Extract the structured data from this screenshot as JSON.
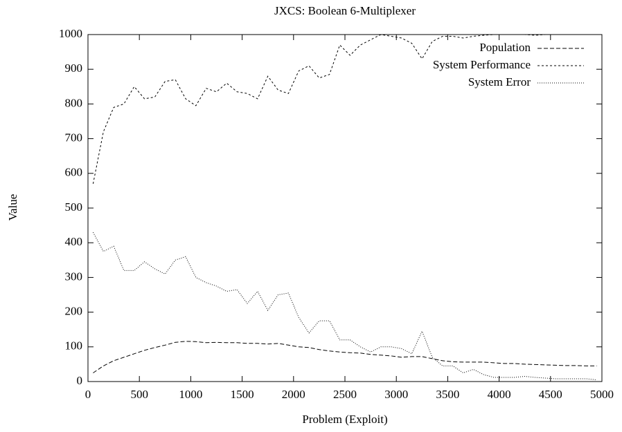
{
  "chart_data": {
    "type": "line",
    "title": "JXCS: Boolean 6-Multiplexer",
    "xlabel": "Problem (Exploit)",
    "ylabel": "Value",
    "x": [
      50,
      150,
      250,
      350,
      450,
      550,
      650,
      750,
      850,
      950,
      1050,
      1150,
      1250,
      1350,
      1450,
      1550,
      1650,
      1750,
      1850,
      1950,
      2050,
      2150,
      2250,
      2350,
      2450,
      2550,
      2650,
      2750,
      2850,
      2950,
      3050,
      3150,
      3250,
      3350,
      3450,
      3550,
      3650,
      3750,
      3850,
      3950,
      4050,
      4150,
      4250,
      4350,
      4450,
      4550,
      4650,
      4750,
      4850,
      4950
    ],
    "series": [
      {
        "name": "Population",
        "color": "#000000",
        "values": [
          25,
          45,
          60,
          70,
          80,
          90,
          98,
          105,
          113,
          116,
          115,
          112,
          113,
          112,
          112,
          110,
          110,
          108,
          110,
          105,
          100,
          98,
          92,
          88,
          85,
          83,
          82,
          78,
          76,
          74,
          70,
          72,
          72,
          66,
          60,
          57,
          56,
          56,
          56,
          54,
          52,
          52,
          50,
          49,
          48,
          47,
          46,
          46,
          45,
          45
        ]
      },
      {
        "name": "System Performance",
        "color": "#000000",
        "values": [
          570,
          720,
          790,
          800,
          850,
          815,
          820,
          865,
          870,
          815,
          795,
          845,
          835,
          860,
          835,
          830,
          815,
          880,
          840,
          830,
          895,
          910,
          875,
          885,
          970,
          940,
          970,
          985,
          1000,
          995,
          990,
          975,
          930,
          980,
          995,
          995,
          990,
          995,
          998,
          1000,
          1000,
          1000,
          1000,
          998,
          1000,
          1000,
          1000,
          1000,
          1000,
          1000
        ]
      },
      {
        "name": "System Error",
        "color": "#000000",
        "values": [
          430,
          375,
          390,
          320,
          320,
          345,
          325,
          310,
          350,
          360,
          300,
          285,
          275,
          260,
          265,
          225,
          260,
          205,
          250,
          255,
          185,
          140,
          175,
          175,
          120,
          120,
          100,
          85,
          100,
          100,
          95,
          80,
          145,
          70,
          45,
          45,
          25,
          35,
          20,
          12,
          12,
          12,
          15,
          12,
          10,
          8,
          8,
          8,
          8,
          5
        ]
      }
    ],
    "xlim": [
      0,
      5000
    ],
    "xticks": [
      0,
      500,
      1000,
      1500,
      2000,
      2500,
      3000,
      3500,
      4000,
      4500,
      5000
    ],
    "ylim": [
      0,
      1000
    ],
    "yticks": [
      0,
      100,
      200,
      300,
      400,
      500,
      600,
      700,
      800,
      900,
      1000
    ],
    "legend": "upper right"
  }
}
